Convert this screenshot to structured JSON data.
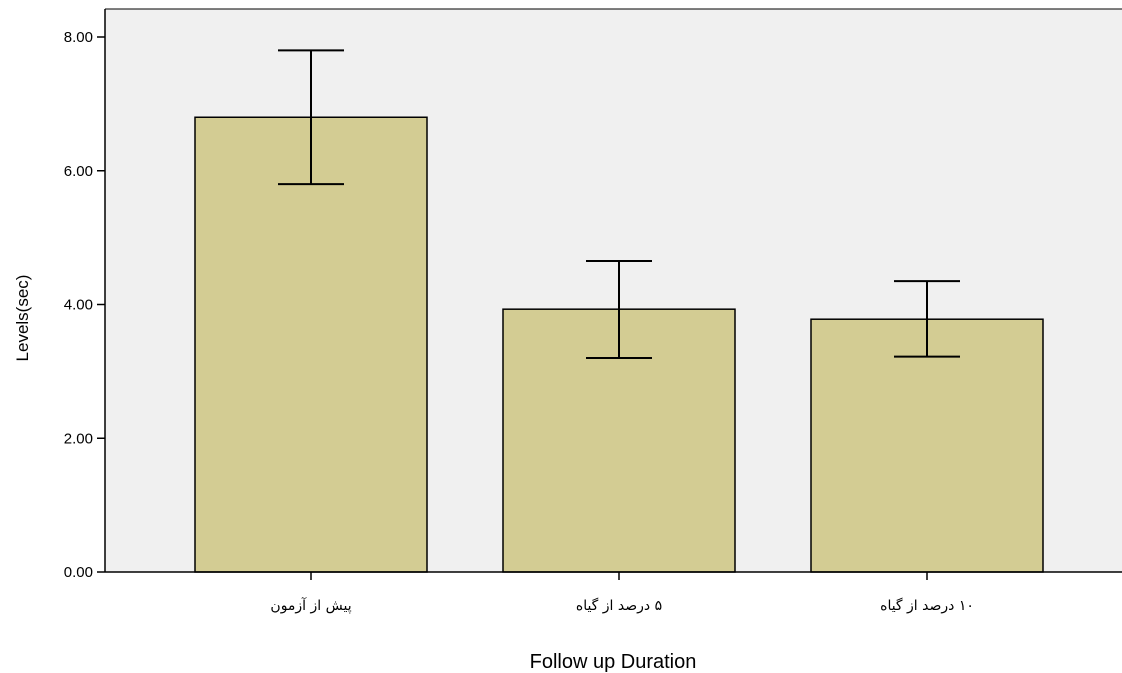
{
  "chart_data": {
    "type": "bar",
    "categories": [
      "پیش از آزمون",
      "۵ درصد از گیاه",
      "۱۰ درصد از گیاه"
    ],
    "values": [
      6.8,
      3.93,
      3.78
    ],
    "error_bars": [
      {
        "low": 5.8,
        "high": 7.8
      },
      {
        "low": 3.2,
        "high": 4.65
      },
      {
        "low": 3.22,
        "high": 4.35
      }
    ],
    "title": "",
    "xlabel": "Follow up Duration",
    "ylabel": "Levels(sec)",
    "ylim": [
      0,
      8
    ],
    "yticks": [
      "0.00",
      "2.00",
      "4.00",
      "6.00",
      "8.00"
    ],
    "grid": false,
    "colors": {
      "bar_fill": "#d3cc93",
      "bar_stroke": "#000000",
      "plot_background": "#f0f0f0",
      "error_bar": "#000000"
    }
  }
}
